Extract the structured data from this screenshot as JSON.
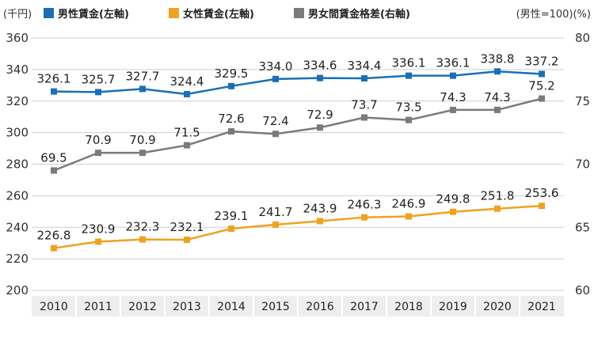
{
  "chart_data": {
    "type": "line",
    "left_unit": "(千円)",
    "right_unit": "(男性=100)(%)",
    "categories": [
      "2010",
      "2011",
      "2012",
      "2013",
      "2014",
      "2015",
      "2016",
      "2017",
      "2018",
      "2019",
      "2020",
      "2021"
    ],
    "y_left": {
      "min": 200,
      "max": 360,
      "ticks": [
        200,
        220,
        240,
        260,
        280,
        300,
        320,
        340,
        360
      ]
    },
    "y_right": {
      "min": 60,
      "max": 80,
      "ticks": [
        60,
        65,
        70,
        75,
        80
      ]
    },
    "grid": true,
    "legend_position": "top",
    "series": [
      {
        "name": "男性賃金(左軸)",
        "axis": "left",
        "color": "#1a6fb5",
        "values": [
          326.1,
          325.7,
          327.7,
          324.4,
          329.5,
          334.0,
          334.6,
          334.4,
          336.1,
          336.1,
          338.8,
          337.2
        ],
        "labels": [
          "326.1",
          "325.7",
          "327.7",
          "324.4",
          "329.5",
          "334.0",
          "334.6",
          "334.4",
          "336.1",
          "336.1",
          "338.8",
          "337.2"
        ]
      },
      {
        "name": "女性賃金(左軸)",
        "axis": "left",
        "color": "#f0a11e",
        "values": [
          226.8,
          230.9,
          232.3,
          232.1,
          239.1,
          241.7,
          243.9,
          246.3,
          246.9,
          249.8,
          251.8,
          253.6
        ],
        "labels": [
          "226.8",
          "230.9",
          "232.3",
          "232.1",
          "239.1",
          "241.7",
          "243.9",
          "246.3",
          "246.9",
          "249.8",
          "251.8",
          "253.6"
        ]
      },
      {
        "name": "男女間賃金格差(右軸)",
        "axis": "right",
        "color": "#7a7a7a",
        "values": [
          69.5,
          70.9,
          70.9,
          71.5,
          72.6,
          72.4,
          72.9,
          73.7,
          73.5,
          74.3,
          74.3,
          75.2
        ],
        "labels": [
          "69.5",
          "70.9",
          "70.9",
          "71.5",
          "72.6",
          "72.4",
          "72.9",
          "73.7",
          "73.5",
          "74.3",
          "74.3",
          "75.2"
        ]
      }
    ]
  }
}
